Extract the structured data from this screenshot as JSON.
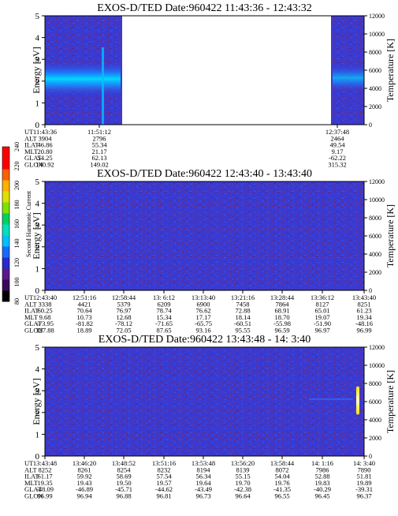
{
  "chart_data": [
    {
      "type": "heatmap",
      "title": "EXOS-D/TED   Date:960422   11:43:36 - 12:43:32",
      "ylabel": "Energy [eV]",
      "ylabel_right": "Temperature [K]",
      "ylim": [
        0,
        5
      ],
      "yticks": [
        "0",
        "1",
        "2",
        "3",
        "4",
        "5"
      ],
      "ylim_right": [
        0,
        12000
      ],
      "yticks_right": [
        "0",
        "2000",
        "4000",
        "6000",
        "8000",
        "10000",
        "12000"
      ],
      "data_gap": {
        "from": "11:51:12",
        "to": "12:37:48"
      },
      "features": [
        {
          "description": "Enhanced band near 2 eV (cyan) before data gap",
          "energy_range_eV": [
            1.3,
            2.9
          ]
        },
        {
          "description": "Enhancement near 2 eV after gap",
          "energy_range_eV": [
            1.5,
            2.8
          ]
        }
      ],
      "orbit_rows": [
        "UT",
        "ALT",
        "ILAT",
        "MLT",
        "GLAT",
        "GLON"
      ],
      "orbit_columns": [
        {
          "UT": "11:43:36",
          "ALT": "3904",
          "ILAT": "46.86",
          "MLT": "20.80",
          "GLAT": "54.25",
          "GLON": "140.92"
        },
        {
          "UT": "11:51:12",
          "ALT": "2796",
          "ILAT": "55.34",
          "MLT": "21.17",
          "GLAT": "62.13",
          "GLON": "149.02"
        },
        {
          "UT": "12:37:48",
          "ALT": "2464",
          "ILAT": "49.54",
          "MLT": "9.17",
          "GLAT": "-62.22",
          "GLON": "315.32"
        }
      ]
    },
    {
      "type": "heatmap",
      "title": "EXOS-D/TED   Date:960422   12:43:40 - 13:43:40",
      "ylabel": "Energy [eV]",
      "ylabel_right": "Temperature [K]",
      "ylim": [
        0,
        5
      ],
      "yticks": [
        "0",
        "1",
        "2",
        "3",
        "4",
        "5"
      ],
      "ylim_right": [
        0,
        12000
      ],
      "yticks_right": [
        "0",
        "2000",
        "4000",
        "6000",
        "8000",
        "10000",
        "12000"
      ],
      "orbit_rows": [
        "UT",
        "ALT",
        "ILAT",
        "MLT",
        "GLAT",
        "GLON"
      ],
      "orbit_columns": [
        {
          "UT": "12:43:40",
          "ALT": "3338",
          "ILAT": "60.25",
          "MLT": "9.68",
          "GLAT": "-73.95",
          "GLON": "327.88"
        },
        {
          "UT": "12:51:16",
          "ALT": "4421",
          "ILAT": "70.64",
          "MLT": "10.73",
          "GLAT": "-81.82",
          "GLON": "18.89"
        },
        {
          "UT": "12:58:44",
          "ALT": "5379",
          "ILAT": "76.97",
          "MLT": "12.68",
          "GLAT": "-78.12",
          "GLON": "72.05"
        },
        {
          "UT": "13: 6:12",
          "ALT": "6209",
          "ILAT": "78.74",
          "MLT": "15.34",
          "GLAT": "-71.65",
          "GLON": "87.65"
        },
        {
          "UT": "13:13:40",
          "ALT": "6900",
          "ILAT": "76.62",
          "MLT": "17.17",
          "GLAT": "-65.75",
          "GLON": "93.16"
        },
        {
          "UT": "13:21:16",
          "ALT": "7458",
          "ILAT": "72.88",
          "MLT": "18.14",
          "GLAT": "-60.51",
          "GLON": "95.55"
        },
        {
          "UT": "13:28:44",
          "ALT": "7864",
          "ILAT": "68.91",
          "MLT": "18.70",
          "GLAT": "-55.98",
          "GLON": "96.59"
        },
        {
          "UT": "13:36:12",
          "ALT": "8127",
          "ILAT": "65.01",
          "MLT": "19.07",
          "GLAT": "-51.90",
          "GLON": "96.97"
        },
        {
          "UT": "13:43:40",
          "ALT": "8251",
          "ILAT": "61.23",
          "MLT": "19.34",
          "GLAT": "-48.16",
          "GLON": "96.99"
        }
      ]
    },
    {
      "type": "heatmap",
      "title": "EXOS-D/TED   Date:960422   13:43:48 - 14: 3:40",
      "ylabel": "Energy [eV]",
      "ylabel_right": "Temperature [K]",
      "ylim": [
        0,
        5
      ],
      "yticks": [
        "0",
        "1",
        "2",
        "3",
        "4",
        "5"
      ],
      "ylim_right": [
        0,
        12000
      ],
      "yticks_right": [
        "0",
        "2000",
        "4000",
        "6000",
        "8000",
        "10000",
        "12000"
      ],
      "features": [
        {
          "description": "Bright spike at end of interval near 2.5 eV",
          "energy_range_eV": [
            1.9,
            3.2
          ]
        }
      ],
      "orbit_rows": [
        "UT",
        "ALT",
        "ILAT",
        "MLT",
        "GLAT",
        "GLON"
      ],
      "orbit_columns": [
        {
          "UT": "13:43:48",
          "ALT": "8252",
          "ILAT": "61.17",
          "MLT": "19.35",
          "GLAT": "-48.09",
          "GLON": "96.99"
        },
        {
          "UT": "13:46:20",
          "ALT": "8261",
          "ILAT": "59.92",
          "MLT": "19.43",
          "GLAT": "-46.89",
          "GLON": "96.94"
        },
        {
          "UT": "13:48:52",
          "ALT": "8254",
          "ILAT": "58.69",
          "MLT": "19.50",
          "GLAT": "-45.71",
          "GLON": "96.88"
        },
        {
          "UT": "13:51:16",
          "ALT": "8232",
          "ILAT": "57.54",
          "MLT": "19.57",
          "GLAT": "-44.62",
          "GLON": "96.81"
        },
        {
          "UT": "13:53:48",
          "ALT": "8194",
          "ILAT": "56.34",
          "MLT": "19.64",
          "GLAT": "-43.49",
          "GLON": "96.73"
        },
        {
          "UT": "13:56:20",
          "ALT": "8139",
          "ILAT": "55.15",
          "MLT": "19.70",
          "GLAT": "-42.38",
          "GLON": "96.64"
        },
        {
          "UT": "13:58:44",
          "ALT": "8072",
          "ILAT": "54.04",
          "MLT": "19.76",
          "GLAT": "-41.35",
          "GLON": "96.55"
        },
        {
          "UT": "14: 1:16",
          "ALT": "7986",
          "ILAT": "52.88",
          "MLT": "19.83",
          "GLAT": "-40.29",
          "GLON": "96.45"
        },
        {
          "UT": "14: 3:40",
          "ALT": "7890",
          "ILAT": "51.81",
          "MLT": "19.89",
          "GLAT": "-39.31",
          "GLON": "96.37"
        }
      ]
    }
  ],
  "colorbar": {
    "label": "Second Harmonic Current",
    "ticks": [
      "80",
      "100",
      "120",
      "140",
      "160",
      "180",
      "200",
      "220",
      "240"
    ],
    "colors": [
      "#000000",
      "#3a0a5a",
      "#5a1a8a",
      "#2a2acc",
      "#1a6aff",
      "#00c0ff",
      "#00e0c0",
      "#00d060",
      "#80e000",
      "#e0e000",
      "#ffb000",
      "#ff6000",
      "#ff0000",
      "#ff0000"
    ]
  }
}
